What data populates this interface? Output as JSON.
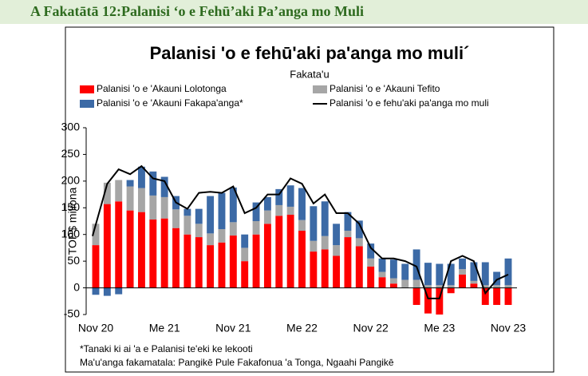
{
  "header": {
    "title": "A Fakatātā 12:Palanisi ‘o e Fehū’aki Pa’anga mo Muli"
  },
  "chart_data": {
    "type": "bar",
    "stacked": true,
    "title": "Palanisi 'o e fehū'aki pa'anga mo muli´",
    "subtitle": "Fakata'u",
    "y_label": "TOP$ miliona",
    "categories": [
      "Nov 20",
      null,
      null,
      null,
      null,
      null,
      "Me 21",
      null,
      null,
      null,
      null,
      null,
      "Nov 21",
      null,
      null,
      null,
      null,
      null,
      "Me 22",
      null,
      null,
      null,
      null,
      null,
      "Nov 22",
      null,
      null,
      null,
      null,
      null,
      "Me 23",
      null,
      null,
      null,
      null,
      null,
      "Nov 23"
    ],
    "series": [
      {
        "name": "Palanisi 'o e 'Akauni Lolotonga",
        "color": "#ff0000",
        "values": [
          80,
          157,
          162,
          145,
          142,
          128,
          130,
          112,
          100,
          95,
          80,
          85,
          98,
          50,
          100,
          120,
          135,
          137,
          107,
          68,
          72,
          60,
          95,
          78,
          40,
          20,
          8,
          0,
          -32,
          -48,
          -50,
          -10,
          25,
          8,
          -32,
          -32,
          -32
        ]
      },
      {
        "name": "Palanisi 'o e 'Akauni Tefito",
        "color": "#a6a6a6",
        "values": [
          40,
          40,
          40,
          45,
          45,
          45,
          40,
          35,
          35,
          25,
          22,
          25,
          25,
          25,
          25,
          25,
          20,
          15,
          20,
          20,
          25,
          20,
          12,
          15,
          15,
          10,
          10,
          15,
          15,
          5,
          5,
          5,
          10,
          5,
          5,
          5,
          5
        ]
      },
      {
        "name": "Palanisi 'o e 'Akauni Fakapa'anga*",
        "color": "#3c6aa6",
        "values": [
          -13,
          -15,
          -12,
          12,
          40,
          45,
          38,
          25,
          13,
          28,
          70,
          68,
          65,
          25,
          35,
          25,
          30,
          40,
          60,
          65,
          65,
          40,
          35,
          33,
          28,
          25,
          35,
          30,
          57,
          42,
          40,
          40,
          20,
          35,
          43,
          25,
          50
        ]
      },
      {
        "name": "Palanisi 'o e fehu'aki pa'anga mo muli",
        "type": "line",
        "color": "#000000",
        "values": [
          97,
          195,
          222,
          213,
          228,
          205,
          200,
          160,
          148,
          178,
          180,
          178,
          190,
          140,
          150,
          175,
          175,
          205,
          195,
          158,
          175,
          140,
          140,
          120,
          75,
          55,
          55,
          50,
          40,
          -20,
          -20,
          50,
          60,
          50,
          -10,
          15,
          25
        ]
      }
    ],
    "ylim": [
      -50,
      300
    ],
    "yticks": [
      -50,
      0,
      50,
      100,
      150,
      200,
      250,
      300
    ],
    "grid": false
  },
  "notes": [
    "*Tanaki ki ai 'a e Palanisi te'eki ke lekooti",
    "Ma'u'anga fakamatala: Pangikē Pule Fakafonua 'a Tonga, Ngaahi Pangikē"
  ]
}
